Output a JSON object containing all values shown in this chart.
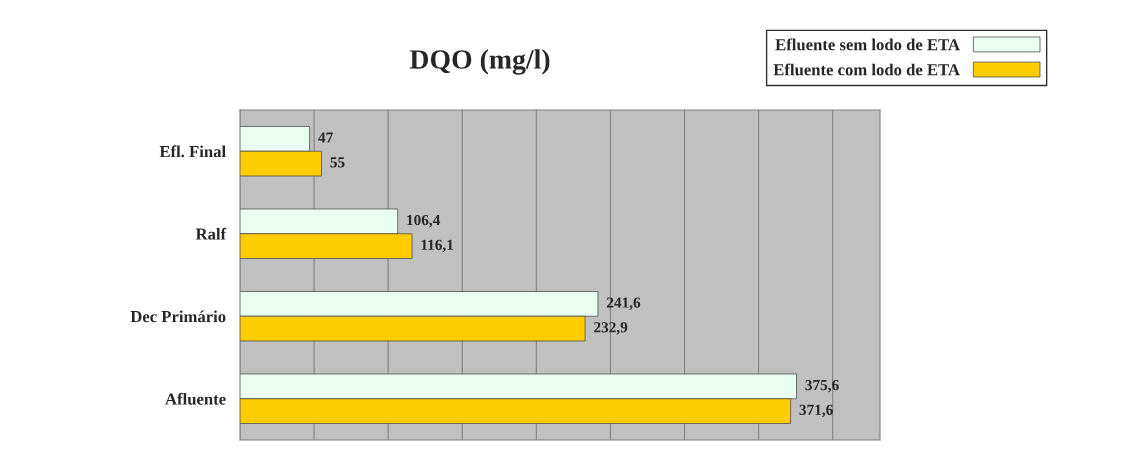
{
  "chart_data": {
    "type": "bar",
    "orientation": "horizontal",
    "title": "DQO (mg/l)",
    "categories": [
      "Efl. Final",
      "Ralf",
      "Dec Primário",
      "Afluente"
    ],
    "series": [
      {
        "name": "Efluente sem lodo de ETA",
        "color": "#eafff2",
        "values": [
          47,
          106.4,
          241.6,
          375.6
        ],
        "value_labels": [
          "47",
          "106,4",
          "241,6",
          "375,6"
        ]
      },
      {
        "name": "Efluente com lodo de ETA",
        "color": "#ffcc00",
        "values": [
          55,
          116.1,
          232.9,
          371.6
        ],
        "value_labels": [
          "55",
          "116,1",
          "232,9",
          "371,6"
        ]
      }
    ],
    "grid": "x",
    "legend": "top right",
    "tick_labels": "y"
  }
}
